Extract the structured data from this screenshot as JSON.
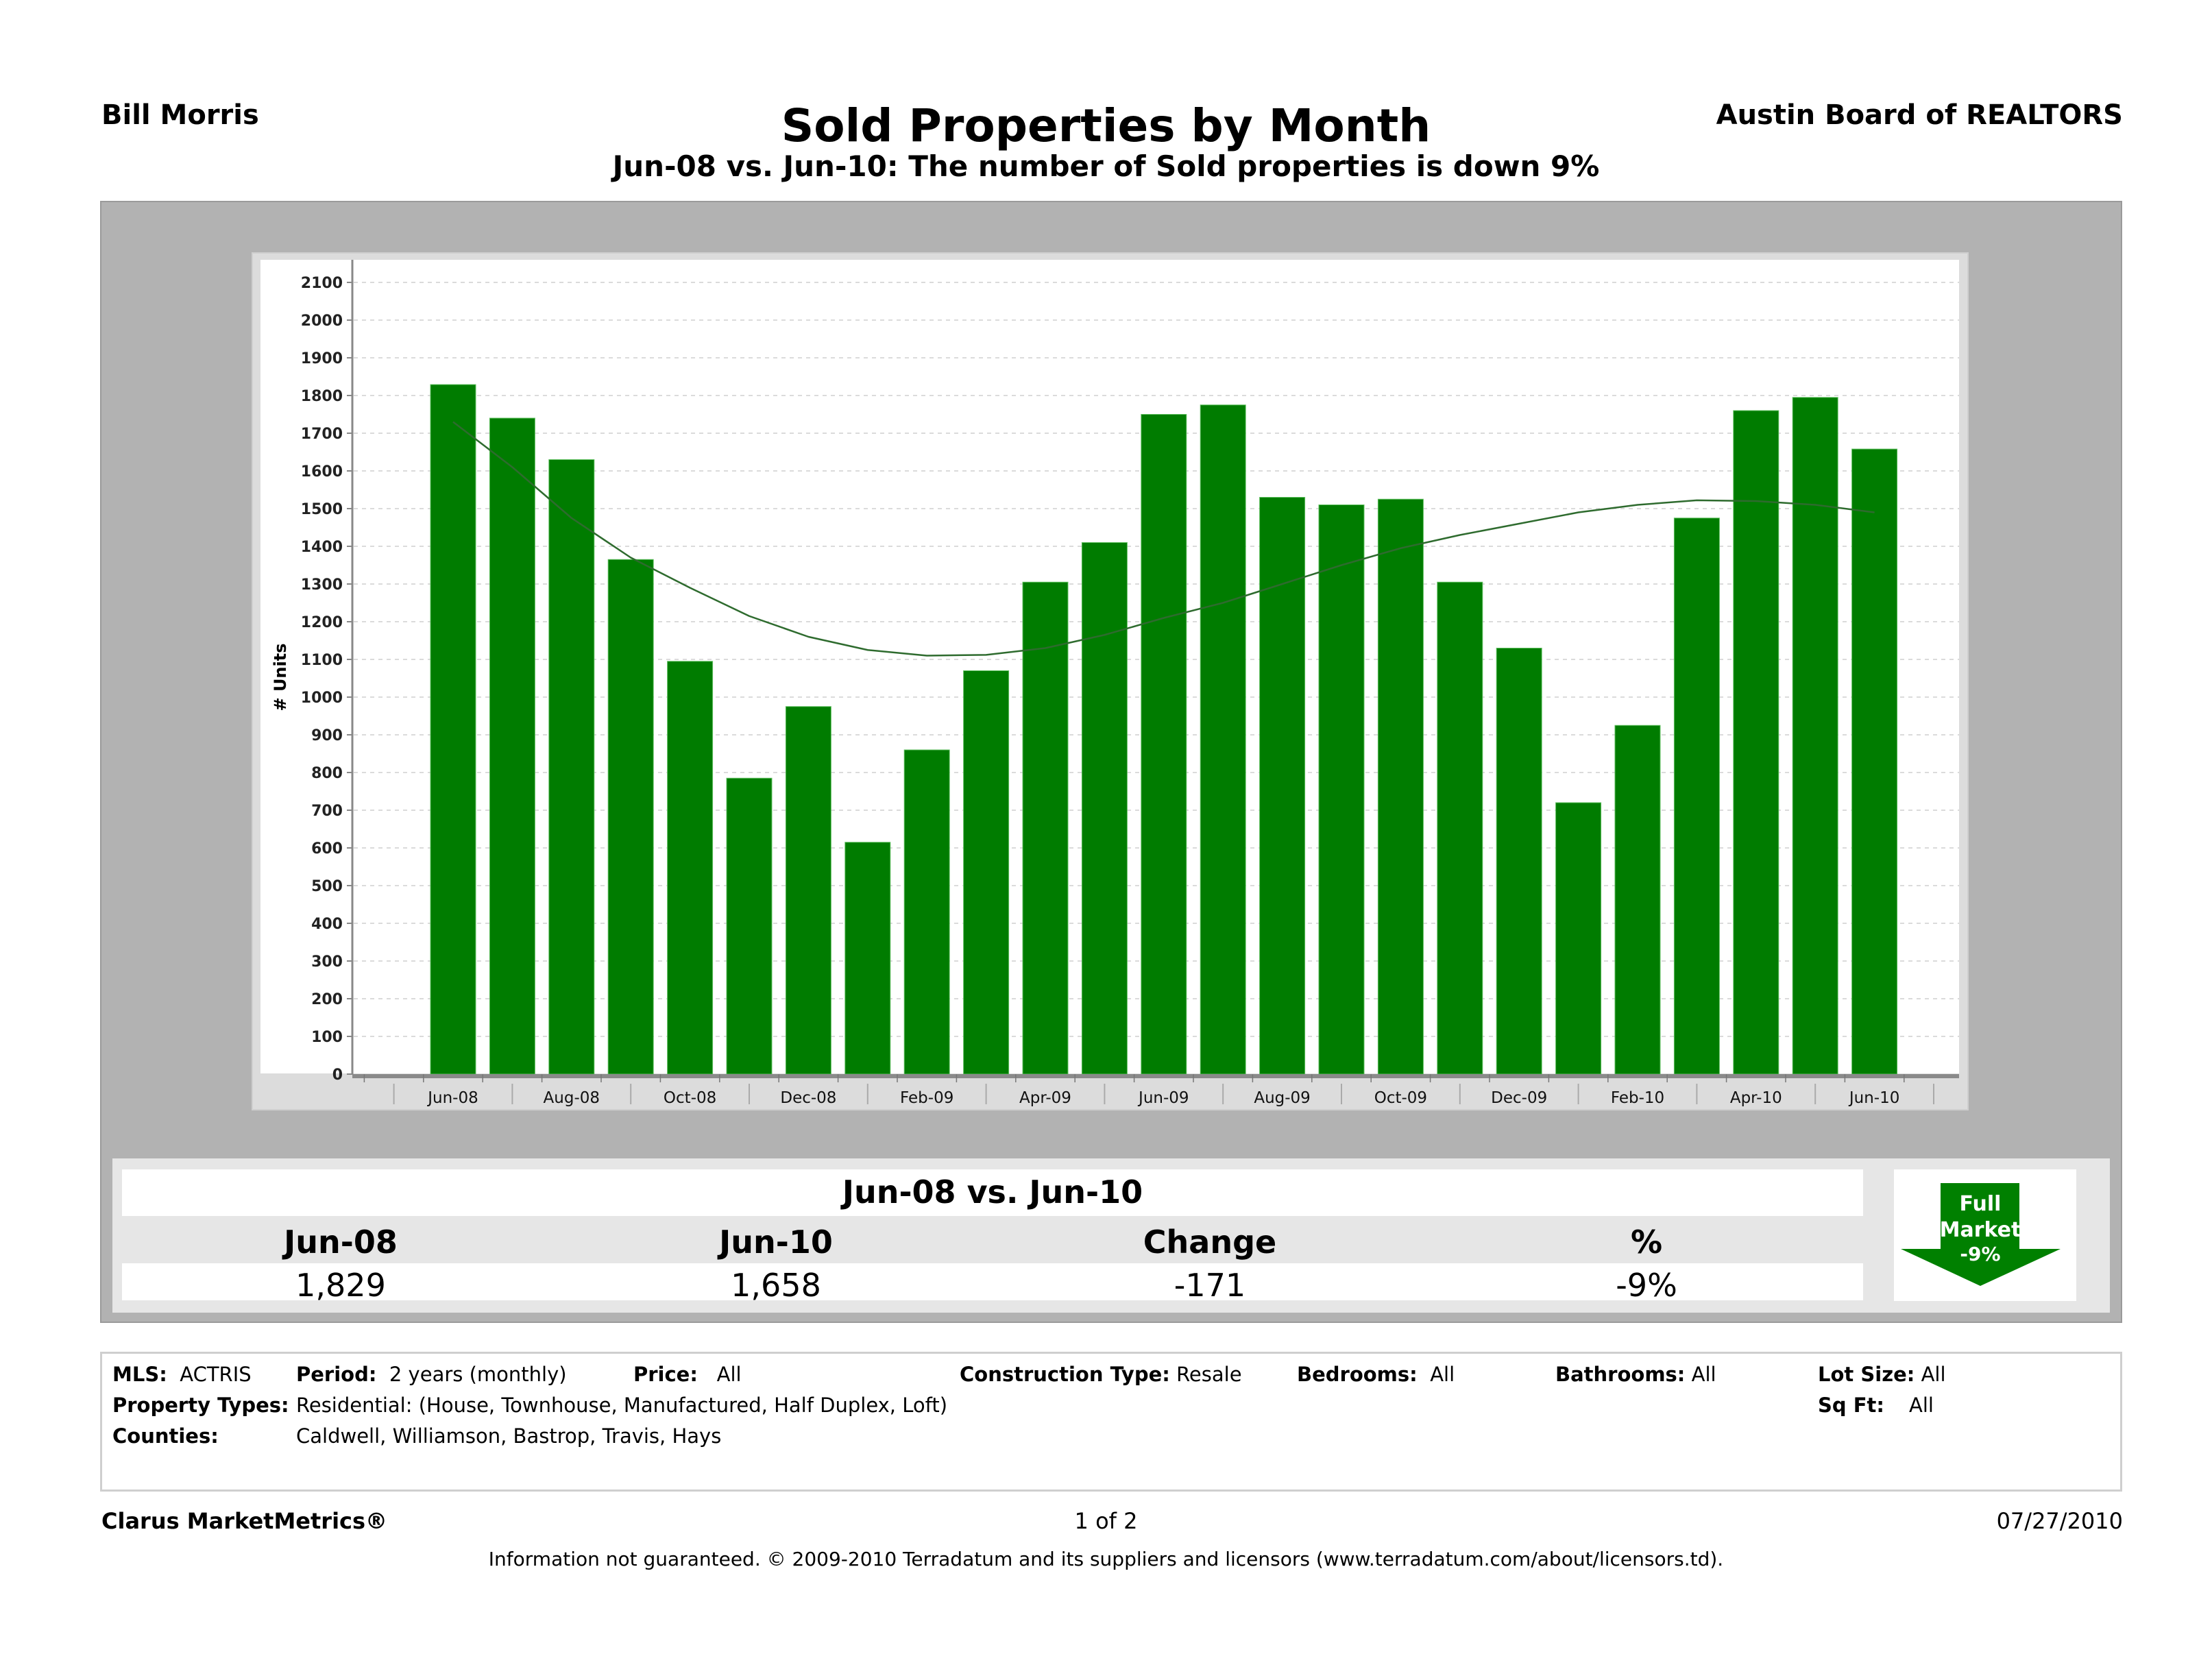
{
  "header": {
    "agent": "Bill Morris",
    "organization": "Austin Board of REALTORS",
    "title": "Sold Properties by Month",
    "subtitle": "Jun-08 vs. Jun-10: The number of Sold properties is down 9%"
  },
  "colors": {
    "bar": "#007c00",
    "trend_line": "#2e6b2e",
    "panel_gray": "#b2b2b2",
    "chart_bg": "#dcdcdc",
    "badge_green": "#008000"
  },
  "chart_data": {
    "type": "bar",
    "title": "Sold Properties by Month",
    "xlabel": "",
    "ylabel": "# Units",
    "ylim": [
      0,
      2160
    ],
    "yticks": [
      0,
      100,
      200,
      300,
      400,
      500,
      600,
      700,
      800,
      900,
      1000,
      1100,
      1200,
      1300,
      1400,
      1500,
      1600,
      1700,
      1800,
      1900,
      2000,
      2100
    ],
    "grid": true,
    "legend": "none",
    "categories": [
      "Jun-08",
      "Jul-08",
      "Aug-08",
      "Sep-08",
      "Oct-08",
      "Nov-08",
      "Dec-08",
      "Jan-09",
      "Feb-09",
      "Mar-09",
      "Apr-09",
      "May-09",
      "Jun-09",
      "Jul-09",
      "Aug-09",
      "Sep-09",
      "Oct-09",
      "Nov-09",
      "Dec-09",
      "Jan-10",
      "Feb-10",
      "Mar-10",
      "Apr-10",
      "May-10",
      "Jun-10"
    ],
    "xtick_labels": [
      "Jun-08",
      "Aug-08",
      "Oct-08",
      "Dec-08",
      "Feb-09",
      "Apr-09",
      "Jun-09",
      "Aug-09",
      "Oct-09",
      "Dec-09",
      "Feb-10",
      "Apr-10",
      "Jun-10"
    ],
    "series": [
      {
        "name": "Sold",
        "type": "bar",
        "values": [
          1829,
          1740,
          1630,
          1365,
          1095,
          785,
          975,
          615,
          860,
          1070,
          1305,
          1410,
          1750,
          1775,
          1530,
          1510,
          1525,
          1305,
          1130,
          720,
          925,
          1475,
          1760,
          1795,
          1658
        ]
      },
      {
        "name": "Trend",
        "type": "line",
        "values": [
          1730,
          1610,
          1475,
          1370,
          1290,
          1215,
          1160,
          1125,
          1110,
          1112,
          1130,
          1165,
          1210,
          1250,
          1300,
          1350,
          1395,
          1430,
          1460,
          1490,
          1510,
          1522,
          1520,
          1510,
          1490
        ]
      }
    ]
  },
  "summary": {
    "title": "Jun-08 vs. Jun-10",
    "columns": [
      "Jun-08",
      "Jun-10",
      "Change",
      "%"
    ],
    "values": [
      "1,829",
      "1,658",
      "-171",
      "-9%"
    ],
    "badge": {
      "line1": "Full",
      "line2": "Market",
      "line3": "-9%",
      "icon": "down-arrow-icon"
    }
  },
  "criteria": {
    "mls_label": "MLS:",
    "mls_value": "ACTRIS",
    "period_label": "Period:",
    "period_value": "2 years (monthly)",
    "price_label": "Price:",
    "price_value": "All",
    "construction_label": "Construction Type:",
    "construction_value": "Resale",
    "bedrooms_label": "Bedrooms:",
    "bedrooms_value": "All",
    "bathrooms_label": "Bathrooms:",
    "bathrooms_value": "All",
    "lotsize_label": "Lot Size:",
    "lotsize_value": "All",
    "proptypes_label": "Property Types:",
    "proptypes_value": "Residential: (House, Townhouse, Manufactured, Half Duplex, Loft)",
    "sqft_label": "Sq Ft:",
    "sqft_value": "All",
    "counties_label": "Counties:",
    "counties_value": "Caldwell, Williamson, Bastrop, Travis, Hays"
  },
  "footer": {
    "brand": "Clarus MarketMetrics®",
    "page": "1 of 2",
    "date": "07/27/2010",
    "disclaimer": "Information not guaranteed.  © 2009-2010 Terradatum and its suppliers and licensors (www.terradatum.com/about/licensors.td)."
  }
}
